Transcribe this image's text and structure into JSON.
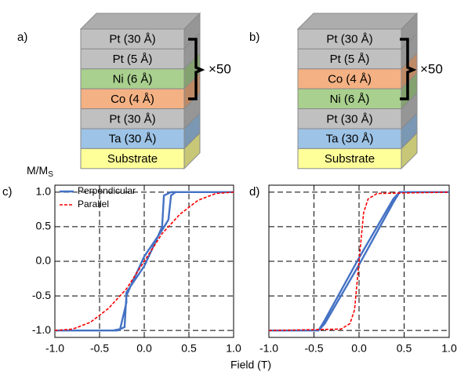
{
  "stacks": [
    {
      "panel": "a)",
      "repeat": "×50",
      "layers": [
        {
          "text": "Pt (30 Å)",
          "color": "#c0c0c0"
        },
        {
          "text": "Pt (5 Å)",
          "color": "#c0c0c0"
        },
        {
          "text": "Ni (6 Å)",
          "color": "#a9d08e"
        },
        {
          "text": "Co (4 Å)",
          "color": "#f4b183"
        },
        {
          "text": "Pt (30 Å)",
          "color": "#c0c0c0"
        },
        {
          "text": "Ta (30 Å)",
          "color": "#9dc3e6"
        },
        {
          "text": "Substrate",
          "color": "#ffff99"
        }
      ]
    },
    {
      "panel": "b)",
      "repeat": "×50",
      "layers": [
        {
          "text": "Pt (30 Å)",
          "color": "#c0c0c0"
        },
        {
          "text": "Pt (5 Å)",
          "color": "#c0c0c0"
        },
        {
          "text": "Co (4 Å)",
          "color": "#f4b183"
        },
        {
          "text": "Ni (6 Å)",
          "color": "#a9d08e"
        },
        {
          "text": "Pt (30 Å)",
          "color": "#c0c0c0"
        },
        {
          "text": "Ta (30 Å)",
          "color": "#9dc3e6"
        },
        {
          "text": "Substrate",
          "color": "#ffff99"
        }
      ]
    }
  ],
  "figure": {
    "x_label": "Field (T)",
    "y_label": "M/M",
    "y_label_sub": "S"
  },
  "chart_data": [
    {
      "type": "line",
      "panel": "c)",
      "legend": "upper left",
      "grid": true,
      "show_ytick_labels": true,
      "xlim": [
        -1,
        1
      ],
      "ylim": [
        -1.1,
        1.1
      ],
      "xticks": [
        {
          "value": -1,
          "label": "-1.0"
        },
        -0.5,
        {
          "value": 0,
          "label": "0.0"
        },
        0.5,
        {
          "value": 1,
          "label": "1.0"
        }
      ],
      "yticks": [
        {
          "value": -1,
          "label": "-1.0"
        },
        -0.5,
        {
          "value": 0,
          "label": "0.0"
        },
        0.5,
        {
          "value": 1,
          "label": "1.0"
        }
      ],
      "series": [
        {
          "name": "Perpendicular",
          "color": "#4472c4",
          "dashed": false,
          "x": [
            1,
            0.35,
            0.3,
            0.27,
            0.2,
            0,
            -0.15,
            -0.2,
            -0.22,
            -0.3,
            -1,
            null,
            -1,
            -0.35,
            -0.27,
            -0.2,
            -0.2,
            0,
            0.15,
            0.2,
            0.22,
            0.3,
            1
          ],
          "values": [
            1,
            1,
            0.95,
            0.6,
            0.45,
            0.07,
            -0.35,
            -0.5,
            -0.95,
            -1,
            -1,
            null,
            -1,
            -1,
            -0.98,
            -0.6,
            -0.45,
            -0.07,
            0.35,
            0.5,
            0.95,
            1,
            1
          ]
        },
        {
          "name": "Parallel",
          "color": "#ff0000",
          "dashed": true,
          "x": [
            -1,
            -0.8,
            -0.6,
            -0.4,
            -0.2,
            0,
            0.2,
            0.4,
            0.6,
            0.8,
            1
          ],
          "values": [
            -1,
            -0.98,
            -0.88,
            -0.68,
            -0.4,
            0,
            0.4,
            0.68,
            0.88,
            0.98,
            1
          ]
        }
      ]
    },
    {
      "type": "line",
      "panel": "d)",
      "grid": true,
      "show_ytick_labels": false,
      "xlim": [
        -1,
        1
      ],
      "ylim": [
        -1.1,
        1.1
      ],
      "xticks": [
        {
          "value": -1,
          "label": "-1.0"
        },
        -0.5,
        {
          "value": 0,
          "label": "0.0"
        },
        0.5,
        {
          "value": 1,
          "label": "1.0"
        }
      ],
      "yticks": [
        -1,
        -0.5,
        0,
        0.5,
        1
      ],
      "series": [
        {
          "color": "#4472c4",
          "dashed": false,
          "x": [
            1,
            0.45,
            0.38,
            0,
            -0.38,
            -0.45,
            -1,
            null,
            -1,
            -0.45,
            -0.38,
            0,
            0.38,
            0.45,
            1
          ],
          "values": [
            1,
            1,
            0.9,
            0.05,
            -0.85,
            -1,
            -1,
            null,
            -1,
            -1,
            -0.9,
            -0.05,
            0.85,
            1,
            1
          ]
        },
        {
          "color": "#ff0000",
          "dashed": true,
          "x": [
            -1,
            -0.2,
            -0.1,
            -0.05,
            0,
            0.05,
            0.1,
            0.2,
            1
          ],
          "values": [
            -1,
            -0.98,
            -0.9,
            -0.7,
            0,
            0.7,
            0.9,
            0.98,
            1
          ]
        }
      ]
    }
  ]
}
